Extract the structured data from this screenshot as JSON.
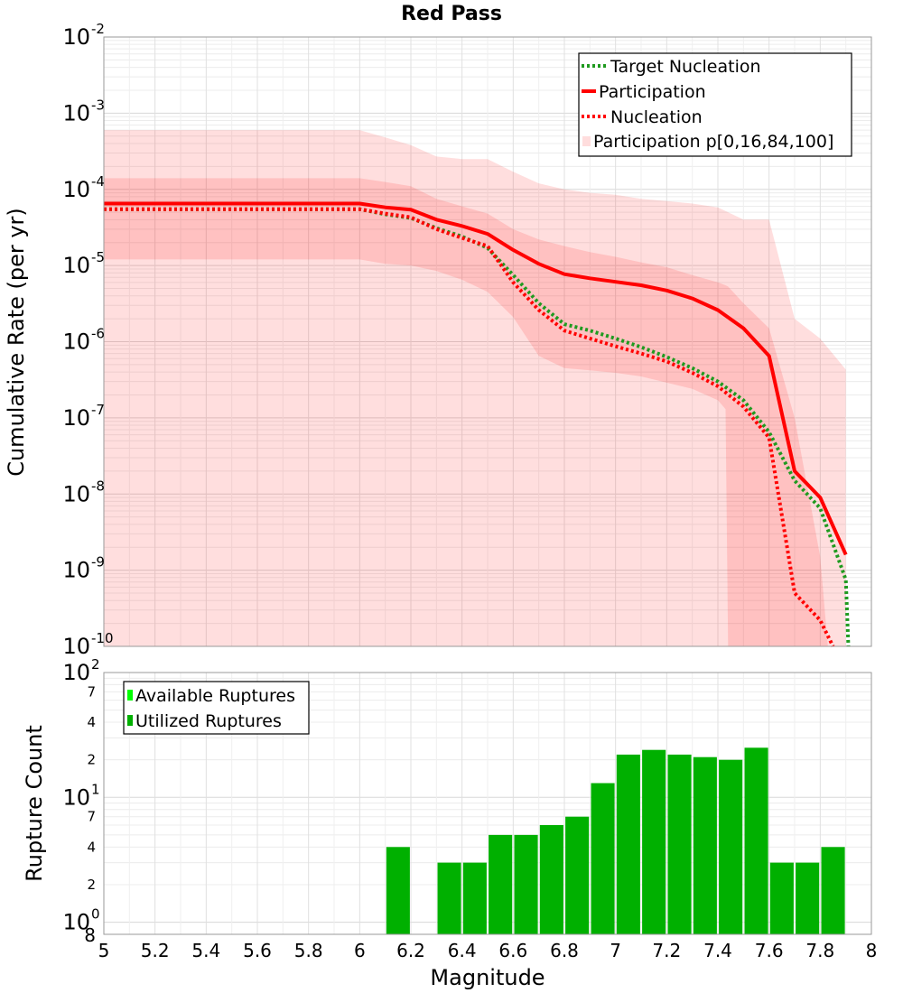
{
  "chart_data": [
    {
      "type": "line",
      "title": "Red Pass",
      "xlabel": "Magnitude",
      "ylabel": "Cumulative Rate (per yr)",
      "yscale": "log",
      "xlim": [
        5,
        8
      ],
      "ylim": [
        1e-10,
        0.01
      ],
      "yticks": [
        {
          "base": "10",
          "exp": "-10"
        },
        {
          "base": "10",
          "exp": "-9"
        },
        {
          "base": "10",
          "exp": "-8"
        },
        {
          "base": "10",
          "exp": "-7"
        },
        {
          "base": "10",
          "exp": "-6"
        },
        {
          "base": "10",
          "exp": "-5"
        },
        {
          "base": "10",
          "exp": "-4"
        },
        {
          "base": "10",
          "exp": "-3"
        },
        {
          "base": "10",
          "exp": "-2"
        }
      ],
      "legend": {
        "position": "top-right",
        "entries": [
          "Target Nucleation",
          "Participation",
          "Nucleation",
          "Participation p[0,16,84,100]"
        ]
      },
      "bands": {
        "name": "Participation p[0,16,84,100]",
        "color": "#ff0000",
        "outer": {
          "x": [
            5,
            6,
            6.1,
            6.2,
            6.3,
            6.4,
            6.5,
            6.6,
            6.7,
            6.8,
            6.9,
            7.0,
            7.1,
            7.2,
            7.3,
            7.4,
            7.5,
            7.6,
            7.7,
            7.8,
            7.9
          ],
          "upper": [
            0.0006,
            0.0006,
            0.00048,
            0.00038,
            0.00027,
            0.00025,
            0.00025,
            0.00017,
            0.00012,
            0.0001,
            9e-05,
            8.5e-05,
            7.5e-05,
            7e-05,
            6.5e-05,
            5.8e-05,
            4e-05,
            4e-05,
            2e-06,
            1.1e-06,
            4.3e-07
          ],
          "lower": [
            1e-10,
            1e-10,
            1e-10,
            1e-10,
            1e-10,
            1e-10,
            1e-10,
            1e-10,
            1e-10,
            1e-10,
            1e-10,
            1e-10,
            1e-10,
            1e-10,
            1e-10,
            1e-10,
            1e-10,
            1e-10,
            1e-10,
            1e-10,
            1e-10
          ]
        },
        "inner": {
          "x": [
            5,
            6,
            6.1,
            6.2,
            6.3,
            6.4,
            6.5,
            6.6,
            6.7,
            6.8,
            6.9,
            7.0,
            7.1,
            7.2,
            7.3,
            7.4,
            7.43,
            7.44,
            7.5,
            7.6,
            7.7,
            7.8,
            7.83
          ],
          "upper": [
            0.00014,
            0.00014,
            0.000125,
            0.00011,
            7.5e-05,
            6e-05,
            4.8e-05,
            3e-05,
            2.2e-05,
            1.8e-05,
            1.5e-05,
            1.3e-05,
            1.1e-05,
            9.5e-06,
            7.5e-06,
            6e-06,
            5.5e-06,
            5.3e-06,
            3.2e-06,
            1.5e-06,
            1e-07,
            1.5e-09,
            1e-10
          ],
          "lower": [
            1.2e-05,
            1.2e-05,
            1.05e-05,
            1e-05,
            8.5e-06,
            6.5e-06,
            4.5e-06,
            2.1e-06,
            6.5e-07,
            4.5e-07,
            4.2e-07,
            3.9e-07,
            3.5e-07,
            2.9e-07,
            2.4e-07,
            1.7e-07,
            1.3e-07,
            1e-10,
            1e-10,
            1e-10,
            1e-10,
            1e-10,
            1e-10
          ]
        }
      },
      "series": [
        {
          "name": "Target Nucleation",
          "color": "#1f9a1f",
          "style": "dotted",
          "x": [
            5,
            6,
            6.1,
            6.2,
            6.3,
            6.4,
            6.5,
            6.6,
            6.7,
            6.8,
            6.9,
            7.0,
            7.1,
            7.2,
            7.3,
            7.4,
            7.5,
            7.6,
            7.7,
            7.8,
            7.9,
            7.91
          ],
          "values": [
            5.5e-05,
            5.5e-05,
            4.7e-05,
            4.2e-05,
            3.1e-05,
            2.4e-05,
            1.7e-05,
            7.5e-06,
            3.2e-06,
            1.7e-06,
            1.4e-06,
            1.1e-06,
            8.5e-07,
            6.3e-07,
            4.5e-07,
            3e-07,
            1.7e-07,
            6.5e-08,
            1.5e-08,
            6.5e-09,
            7.5e-10,
            1e-10
          ]
        },
        {
          "name": "Participation",
          "color": "#ff0000",
          "style": "solid",
          "x": [
            5,
            6,
            6.1,
            6.2,
            6.3,
            6.4,
            6.5,
            6.6,
            6.7,
            6.8,
            6.9,
            7.0,
            7.1,
            7.2,
            7.3,
            7.4,
            7.5,
            7.6,
            7.7,
            7.8,
            7.9
          ],
          "values": [
            6.5e-05,
            6.5e-05,
            5.8e-05,
            5.4e-05,
            4e-05,
            3.3e-05,
            2.6e-05,
            1.6e-05,
            1.05e-05,
            7.7e-06,
            6.8e-06,
            6.1e-06,
            5.5e-06,
            4.7e-06,
            3.7e-06,
            2.6e-06,
            1.5e-06,
            6.5e-07,
            2e-08,
            9e-09,
            1.6e-09
          ]
        },
        {
          "name": "Nucleation",
          "color": "#ff0000",
          "style": "dotted",
          "x": [
            5,
            6,
            6.1,
            6.2,
            6.3,
            6.4,
            6.5,
            6.6,
            6.7,
            6.8,
            6.9,
            7.0,
            7.1,
            7.2,
            7.3,
            7.4,
            7.5,
            7.6,
            7.7,
            7.8,
            7.85
          ],
          "values": [
            5.5e-05,
            5.5e-05,
            4.8e-05,
            4.3e-05,
            3e-05,
            2.3e-05,
            1.8e-05,
            6e-06,
            2.6e-06,
            1.4e-06,
            1.1e-06,
            8.7e-07,
            7e-07,
            5.5e-07,
            3.9e-07,
            2.6e-07,
            1.4e-07,
            5.5e-08,
            5e-10,
            2.2e-10,
            1e-10
          ]
        }
      ]
    },
    {
      "type": "bar",
      "xlabel": "Magnitude",
      "ylabel": "Rupture Count",
      "yscale": "log",
      "xlim": [
        5,
        8
      ],
      "ylim": [
        0.8,
        100
      ],
      "xticks": [
        "5",
        "5.2",
        "5.4",
        "5.6",
        "5.8",
        "6",
        "6.2",
        "6.4",
        "6.6",
        "6.8",
        "7",
        "7.2",
        "7.4",
        "7.6",
        "7.8",
        "8"
      ],
      "major_ticks": [
        {
          "base": "10",
          "exp": "0"
        },
        {
          "base": "10",
          "exp": "1"
        },
        {
          "base": "10",
          "exp": "2"
        }
      ],
      "minor_tick_labels": [
        {
          "value": 0.8,
          "label": "8"
        },
        {
          "value": 2,
          "label": "2"
        },
        {
          "value": 4,
          "label": "4"
        },
        {
          "value": 7,
          "label": "7"
        },
        {
          "value": 20,
          "label": "2"
        },
        {
          "value": 40,
          "label": "4"
        },
        {
          "value": 70,
          "label": "7"
        }
      ],
      "legend": {
        "position": "top-left",
        "entries": [
          "Available Ruptures",
          "Utilized Ruptures"
        ],
        "colors": [
          "#00ff00",
          "#00b000"
        ]
      },
      "bar_width": 0.092,
      "series": [
        {
          "name": "Utilized Ruptures",
          "color": "#00b000",
          "x": [
            6.15,
            6.35,
            6.45,
            6.55,
            6.65,
            6.75,
            6.85,
            6.95,
            7.05,
            7.15,
            7.25,
            7.35,
            7.45,
            7.55,
            7.65,
            7.75,
            7.85
          ],
          "values": [
            4,
            3,
            3,
            5,
            5,
            6,
            7,
            13,
            22,
            24,
            22,
            21,
            20,
            25,
            3,
            3,
            4
          ]
        }
      ]
    }
  ]
}
